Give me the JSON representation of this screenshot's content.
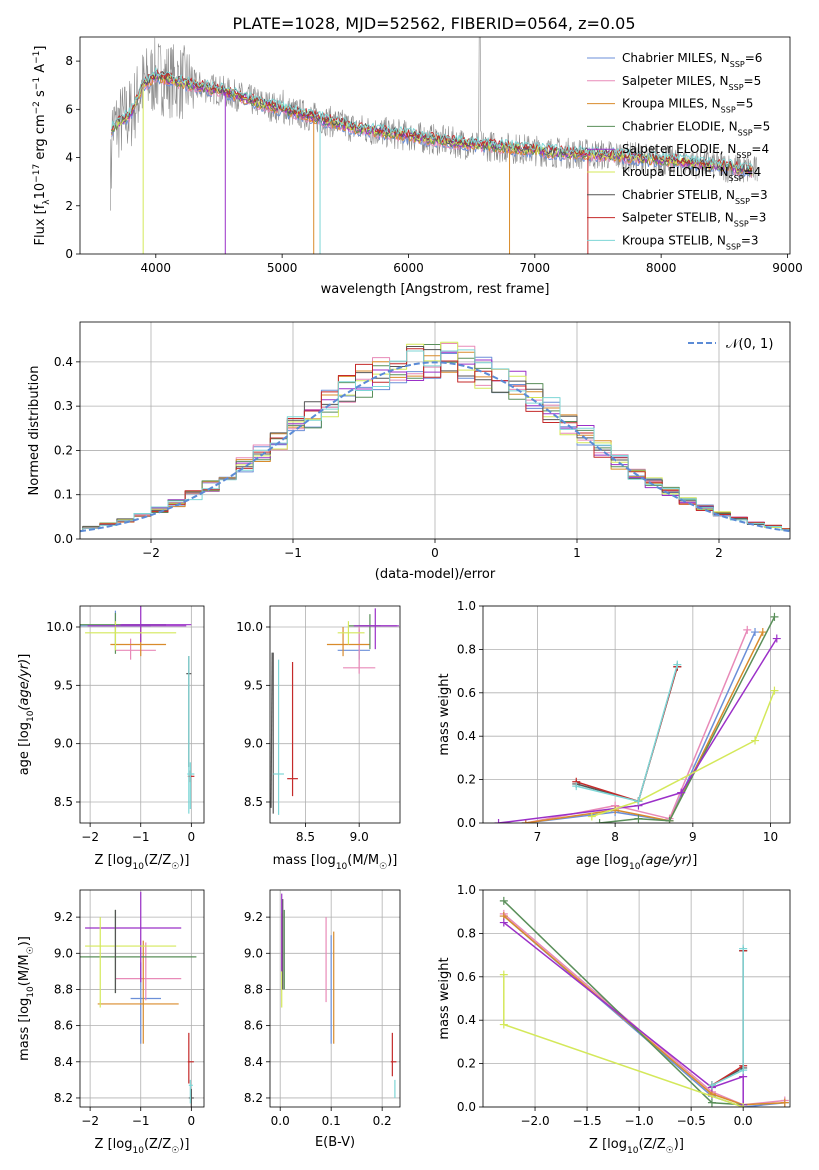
{
  "figure_title": "PLATE=1028, MJD=52562, FIBERID=0564, z=0.05",
  "colors": {
    "Chabrier MILES": "#6b8fd8",
    "Salpeter MILES": "#e88ab8",
    "Kroupa MILES": "#d98b2b",
    "Chabrier ELODIE": "#5a8f5a",
    "Salpeter ELODIE": "#9b30c8",
    "Kroupa ELODIE": "#d4e85a",
    "Chabrier STELIB": "#555555",
    "Salpeter STELIB": "#c42a2a",
    "Kroupa STELIB": "#7dd6d6",
    "data": "#8a8a8a",
    "normal": "#5b8bd6"
  },
  "chart_data": [
    {
      "id": "spectrum",
      "type": "line",
      "xlabel": "wavelength [Angstrom, rest frame]",
      "ylabel_main": "Flux [f",
      "ylabel_sub": "λ",
      "ylabel_mid": "10",
      "ylabel_sup1": "−17",
      "ylabel_tail": " erg cm",
      "ylabel_sup2": "−2",
      "ylabel_tail2": " s",
      "ylabel_sup3": "−1",
      "ylabel_tail3": " A",
      "ylabel_sup4": "−1",
      "ylabel_end": "]",
      "xlim": [
        3400,
        9020
      ],
      "ylim": [
        0,
        9
      ],
      "xticks": [
        4000,
        5000,
        6000,
        7000,
        8000,
        9000
      ],
      "yticks": [
        0,
        2,
        4,
        6,
        8
      ],
      "grid": false,
      "legend_position": "top-right",
      "legend": [
        {
          "label": "Chabrier MILES",
          "n": "6"
        },
        {
          "label": "Salpeter MILES",
          "n": "5"
        },
        {
          "label": "Kroupa MILES",
          "n": "5"
        },
        {
          "label": "Chabrier ELODIE",
          "n": "5"
        },
        {
          "label": "Salpeter ELODIE",
          "n": "4"
        },
        {
          "label": "Kroupa ELODIE",
          "n": "4"
        },
        {
          "label": "Chabrier STELIB",
          "n": "3"
        },
        {
          "label": "Salpeter STELIB",
          "n": "3"
        },
        {
          "label": "Kroupa STELIB",
          "n": "3"
        }
      ],
      "legend_nssp_prefix": ", N",
      "legend_nssp_sub": "SSP",
      "data_envelope": {
        "x": [
          3650,
          3800,
          3900,
          4000,
          4200,
          4500,
          4800,
          5000,
          5300,
          5600,
          6000,
          6400,
          6800,
          7200,
          7600,
          8000,
          8400,
          8800
        ],
        "y": [
          5.2,
          5.8,
          7.0,
          7.4,
          7.1,
          6.8,
          6.3,
          6.0,
          5.6,
          5.2,
          4.9,
          4.6,
          4.4,
          4.2,
          4.1,
          3.9,
          3.7,
          3.4
        ]
      }
    },
    {
      "id": "residuals",
      "type": "histogram",
      "xlabel": "(data-model)/error",
      "ylabel": "Normed distribution",
      "xlim": [
        -2.5,
        2.5
      ],
      "ylim": [
        0,
        0.49
      ],
      "xticks": [
        -2,
        -1,
        0,
        1,
        2
      ],
      "yticks": [
        0.0,
        0.1,
        0.2,
        0.3,
        0.4
      ],
      "grid": true,
      "legend_position": "top-right",
      "normal_label": "𝒩(0, 1)",
      "bin_width": 0.12
    },
    {
      "id": "age_vs_Z",
      "type": "scatter",
      "xlabel": "Z [log10(Z/Z☉)]",
      "ylabel": "age  [log10(age/yr)]",
      "xlim": [
        -2.2,
        0.25
      ],
      "ylim": [
        8.32,
        10.18
      ],
      "xticks": [
        -2,
        -1,
        0
      ],
      "yticks": [
        8.5,
        9.0,
        9.5,
        10.0
      ],
      "grid": true
    },
    {
      "id": "age_vs_mass",
      "type": "scatter",
      "xlabel": "mass [log10(M/M☉)]",
      "ylabel": "",
      "xlim": [
        8.17,
        9.38
      ],
      "ylim": [
        8.32,
        10.18
      ],
      "xticks": [
        8.5,
        9.0
      ],
      "yticks": [
        8.5,
        9.0,
        9.5,
        10.0
      ],
      "grid": true
    },
    {
      "id": "weight_vs_age",
      "type": "line",
      "xlabel": "age  [log10(age/yr)]",
      "ylabel": "mass weight",
      "xlim": [
        6.3,
        10.25
      ],
      "ylim": [
        0,
        1
      ],
      "xticks": [
        7,
        8,
        9,
        10
      ],
      "yticks": [
        0.0,
        0.2,
        0.4,
        0.6,
        0.8,
        1.0
      ],
      "grid": true
    },
    {
      "id": "mass_vs_Z",
      "type": "scatter",
      "xlabel": "Z [log10(Z/Z☉)]",
      "ylabel": "mass [log10(M/M☉)]",
      "xlim": [
        -2.2,
        0.25
      ],
      "ylim": [
        8.15,
        9.35
      ],
      "xticks": [
        -2,
        -1,
        0
      ],
      "yticks": [
        8.2,
        8.4,
        8.6,
        8.8,
        9.0,
        9.2
      ],
      "grid": true
    },
    {
      "id": "mass_vs_EBV",
      "type": "scatter",
      "xlabel": "E(B-V)",
      "ylabel": "",
      "xlim": [
        -0.02,
        0.235
      ],
      "ylim": [
        8.15,
        9.35
      ],
      "xticks": [
        0.0,
        0.1,
        0.2
      ],
      "yticks": [
        8.2,
        8.4,
        8.6,
        8.8,
        9.0,
        9.2
      ],
      "grid": true
    },
    {
      "id": "weight_vs_Z",
      "type": "line",
      "xlabel": "Z [log10(Z/Z☉)]",
      "ylabel": "mass weight",
      "xlim": [
        -2.5,
        0.45
      ],
      "ylim": [
        0,
        1
      ],
      "xticks": [
        -2.0,
        -1.5,
        -1.0,
        -0.5,
        0.0
      ],
      "yticks": [
        0.0,
        0.2,
        0.4,
        0.6,
        0.8,
        1.0
      ],
      "grid": true
    }
  ]
}
